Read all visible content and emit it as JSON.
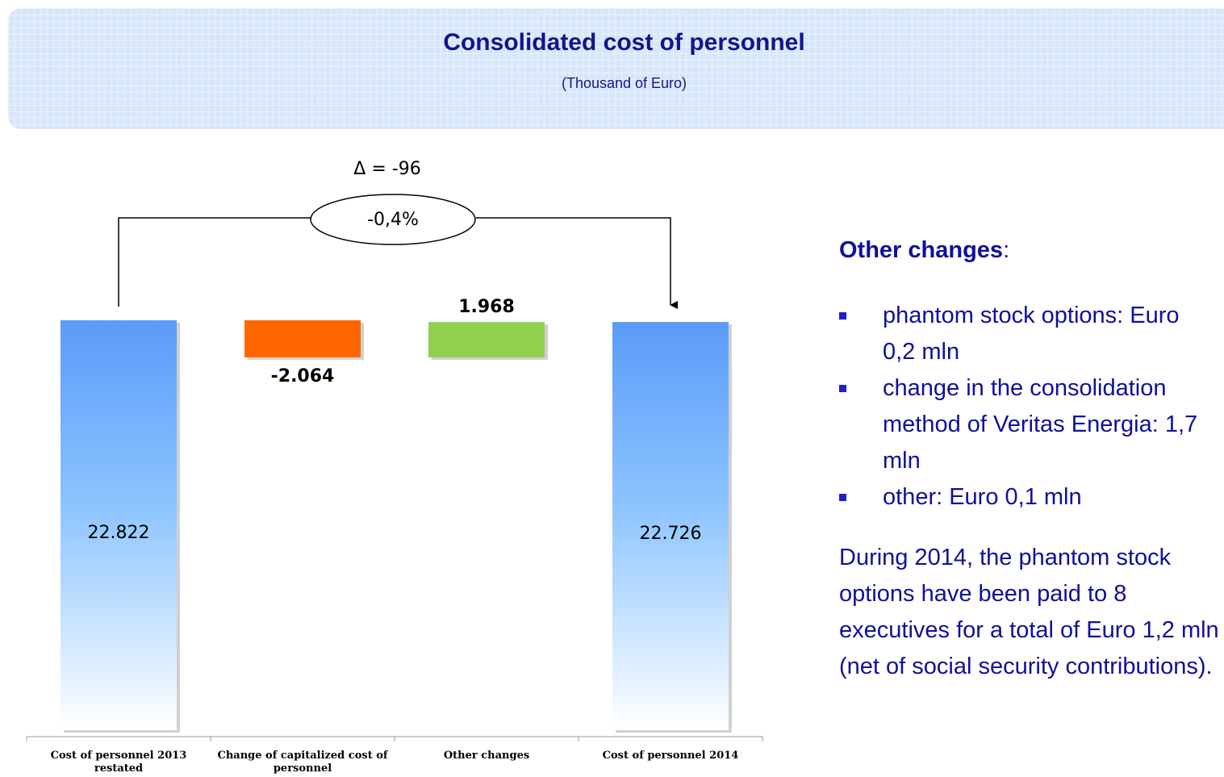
{
  "header": {
    "title": "Consolidated cost of personnel",
    "subtitle": "(Thousand of Euro)"
  },
  "chart_data": {
    "type": "waterfall",
    "categories": [
      "Cost of personnel 2013 restated",
      "Change of capitalized cost of personnel",
      "Other changes",
      "Cost of personnel 2014"
    ],
    "values": [
      22822,
      -2064,
      1968,
      22726
    ],
    "value_labels": [
      "22.822",
      "-2.064",
      "1.968",
      "22.726"
    ],
    "totals": [
      true,
      false,
      false,
      true
    ],
    "colors": [
      "#5b9bf8",
      "#ff6600",
      "#92d050",
      "#5b9bf8"
    ],
    "ylim": [
      0,
      23000
    ],
    "delta_label": "Δ = -96",
    "change_label": "-0,4%"
  },
  "side_panel": {
    "heading": "Other changes",
    "heading_suffix": ":",
    "bullets": [
      "phantom stock options: Euro 0,2 mln",
      "change in the consolidation method of Veritas Energia: 1,7 mln",
      "other: Euro 0,1 mln"
    ],
    "paragraph": "During 2014, the phantom stock options have been paid to 8 executives for a total of Euro 1,2 mln (net of social security contributions)."
  }
}
